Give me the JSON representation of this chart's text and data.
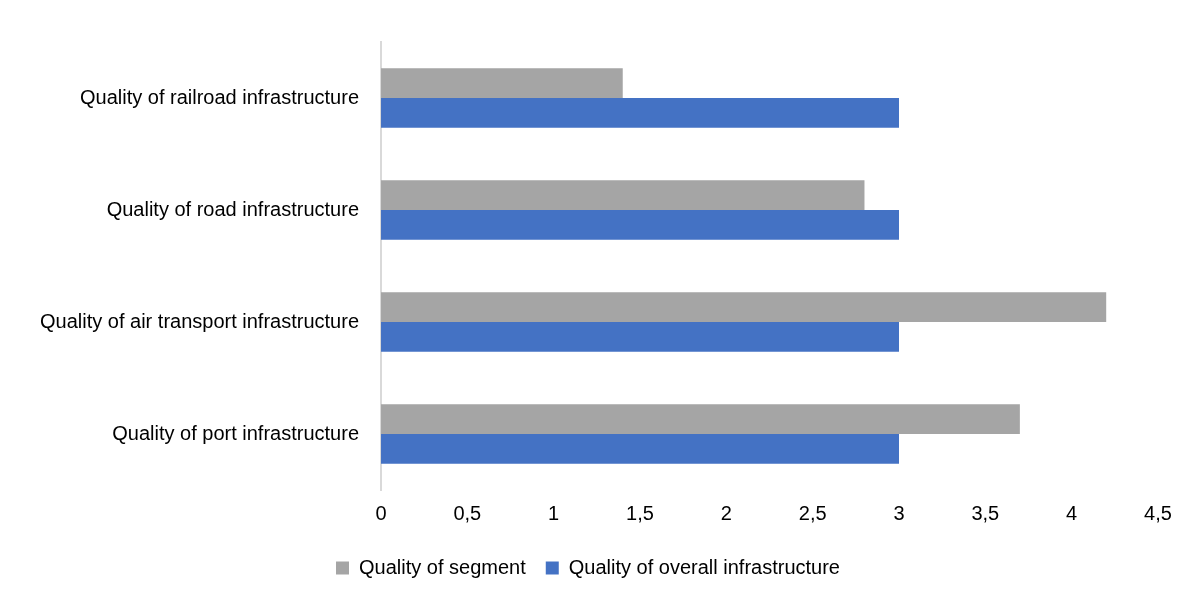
{
  "chart_data": {
    "type": "bar",
    "orientation": "horizontal",
    "categories": [
      "Quality of railroad infrastructure",
      "Quality of road infrastructure",
      "Quality of air transport infrastructure",
      "Quality of port infrastructure"
    ],
    "series": [
      {
        "name": "Quality of segment",
        "color": "#a5a5a5",
        "values": [
          1.4,
          2.8,
          4.2,
          3.7
        ]
      },
      {
        "name": "Quality of overall infrastructure",
        "color": "#4472c4",
        "values": [
          3,
          3,
          3,
          3
        ]
      }
    ],
    "xlim": [
      0,
      4.5
    ],
    "xticks": [
      0,
      {
        "value": 0.5,
        "label": "0,5"
      },
      1,
      {
        "value": 1.5,
        "label": "1,5"
      },
      2,
      {
        "value": 2.5,
        "label": "2,5"
      },
      3,
      {
        "value": 3.5,
        "label": "3,5"
      },
      4,
      {
        "value": 4.5,
        "label": "4,5"
      }
    ],
    "grid": false,
    "legend": "bottom"
  }
}
